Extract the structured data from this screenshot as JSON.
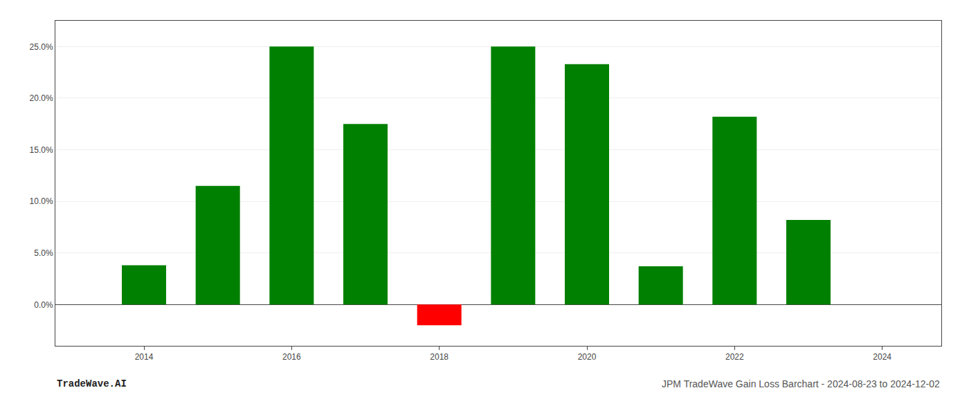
{
  "chart_data": {
    "type": "bar",
    "title": "JPM TradeWave Gain Loss Barchart - 2024-08-23 to 2024-12-02",
    "annotations": [
      "TradeWave.AI"
    ],
    "x": [
      2014,
      2015,
      2016,
      2017,
      2018,
      2019,
      2020,
      2021,
      2022,
      2023
    ],
    "values": [
      0.038,
      0.115,
      0.25,
      0.175,
      -0.02,
      0.25,
      0.233,
      0.037,
      0.182,
      0.082
    ],
    "colors": [
      "#008000",
      "#008000",
      "#008000",
      "#008000",
      "#ff0000",
      "#008000",
      "#008000",
      "#008000",
      "#008000",
      "#008000"
    ],
    "xlim": [
      2012.8,
      2024.8
    ],
    "xticks": [
      2014,
      2016,
      2018,
      2020,
      2022,
      2024
    ],
    "ylim": [
      -0.04,
      0.275
    ],
    "yticks": [
      {
        "value": 0.0,
        "label": "0.0%"
      },
      {
        "value": 0.05,
        "label": "5.0%"
      },
      {
        "value": 0.1,
        "label": "10.0%"
      },
      {
        "value": 0.15,
        "label": "15.0%"
      },
      {
        "value": 0.2,
        "label": "20.0%"
      },
      {
        "value": 0.25,
        "label": "25.0%"
      }
    ],
    "grid": true
  }
}
